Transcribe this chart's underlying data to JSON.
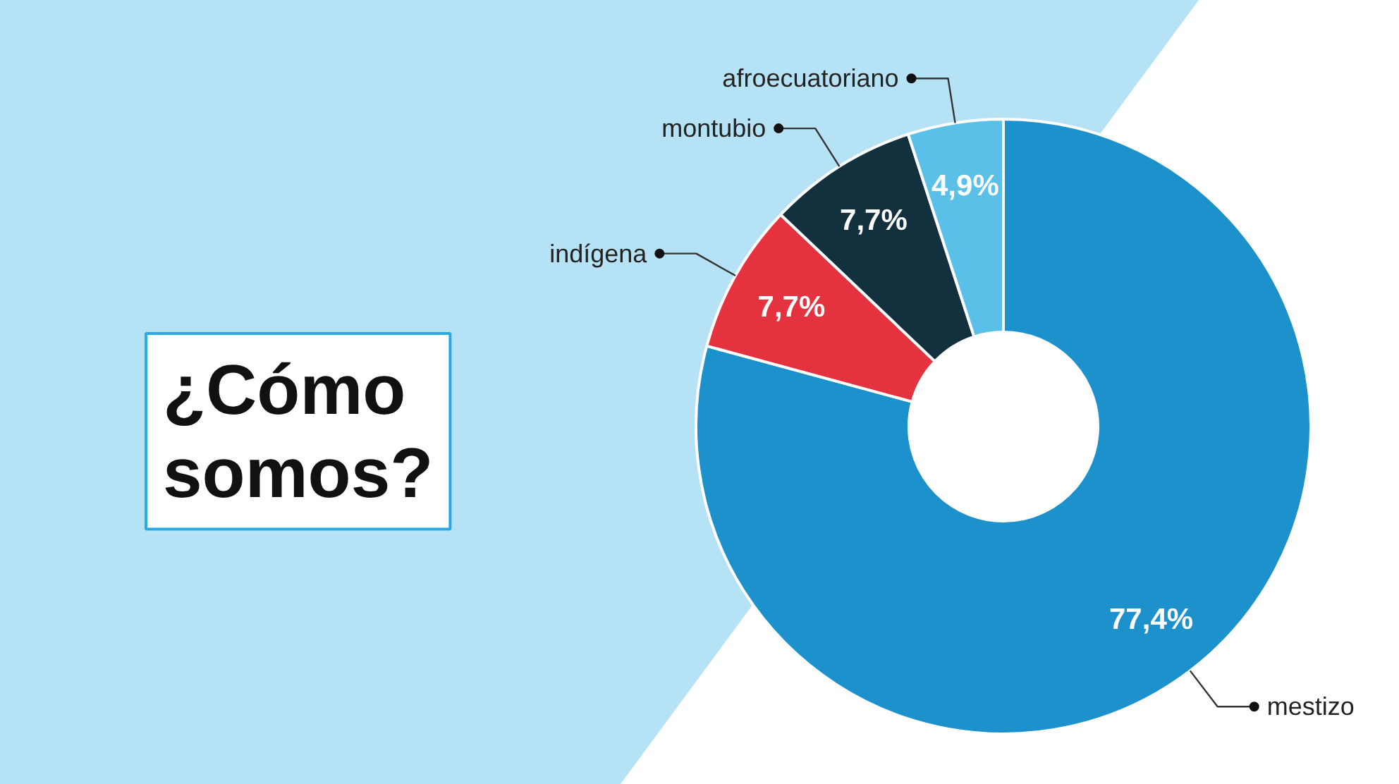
{
  "chart_data": {
    "type": "donut",
    "title": "¿Cómo somos?",
    "categories": [
      "mestizo",
      "indígena",
      "montubio",
      "afroecuatoriano"
    ],
    "values": [
      77.4,
      7.7,
      7.7,
      4.9
    ],
    "colors": [
      "#1d91cb",
      "#e5323f",
      "#13303e",
      "#5bc0e8"
    ],
    "value_labels": [
      "77,4%",
      "7,7%",
      "7,7%",
      "4,9%"
    ]
  }
}
